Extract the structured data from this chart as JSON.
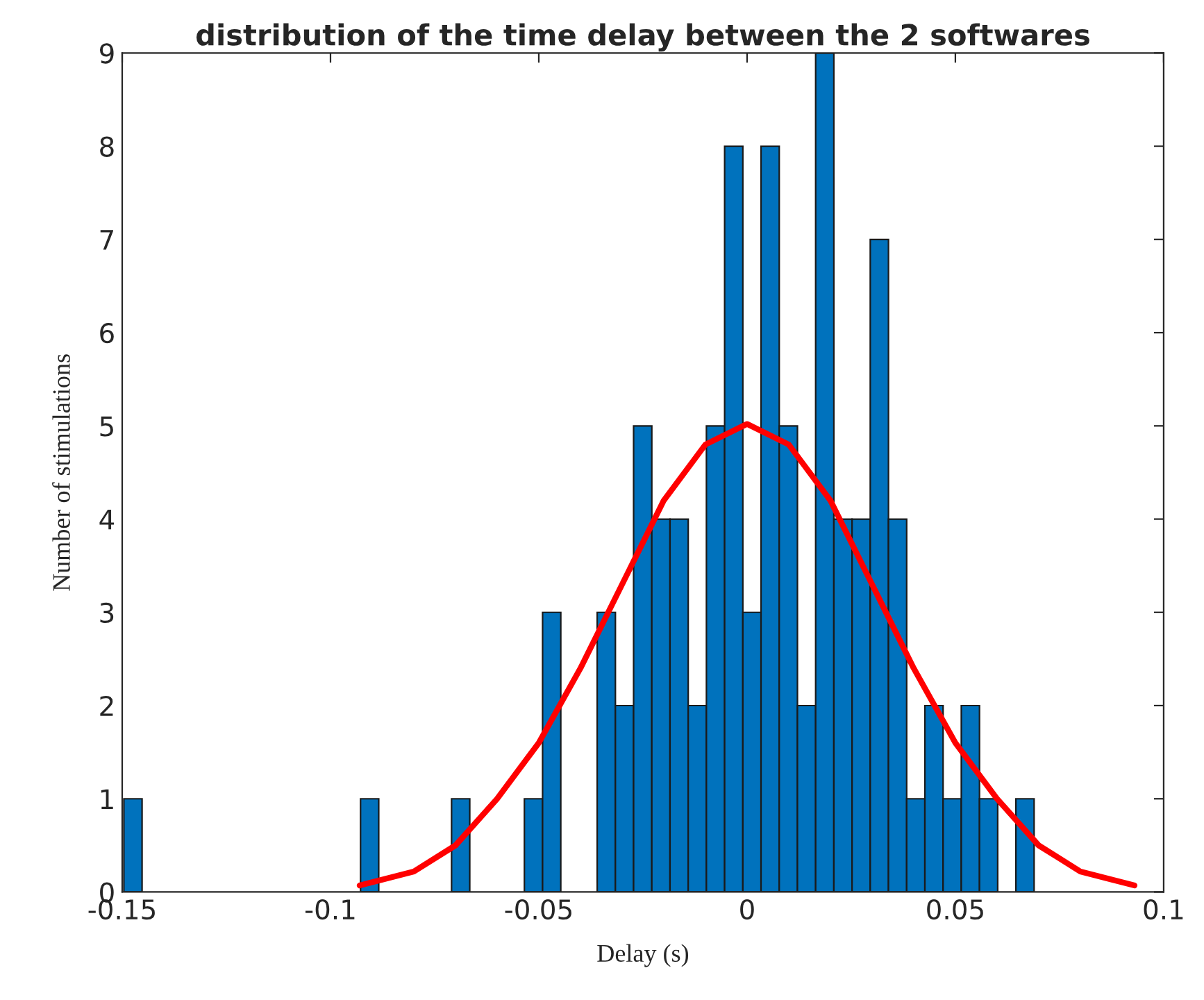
{
  "chart_data": {
    "type": "histogram",
    "title": "distribution of the time delay between the 2 softwares",
    "xlabel": "Delay (s)",
    "ylabel": "Number of stimulations",
    "bins": [
      -0.1496,
      -0.14523,
      -0.14086,
      -0.13649,
      -0.13212,
      -0.12775,
      -0.12338,
      -0.11901,
      -0.11464,
      -0.11027,
      -0.1059,
      -0.10153,
      -0.09716,
      -0.09279,
      -0.08842,
      -0.08405,
      -0.07968,
      -0.07531,
      -0.07094,
      -0.06657,
      -0.0622,
      -0.05783,
      -0.05346,
      -0.04909,
      -0.04472,
      -0.04035,
      -0.03598,
      -0.03161,
      -0.02724,
      -0.02287,
      -0.0185,
      -0.01413,
      -0.00976,
      -0.00539,
      -0.00102,
      0.00335,
      0.00772,
      0.01209,
      0.01646,
      0.02083,
      0.0252,
      0.02957,
      0.03394,
      0.03831,
      0.04268,
      0.04705,
      0.05142,
      0.05579,
      0.06016,
      0.06453,
      0.0689
    ],
    "values": [
      1,
      0,
      0,
      0,
      0,
      0,
      0,
      0,
      0,
      0,
      0,
      0,
      0,
      1,
      0,
      0,
      0,
      0,
      1,
      0,
      0,
      0,
      1,
      3,
      0,
      0,
      3,
      2,
      5,
      4,
      4,
      2,
      5,
      8,
      3,
      8,
      5,
      2,
      9,
      4,
      4,
      7,
      4,
      1,
      2,
      1,
      2,
      1,
      0,
      1
    ],
    "color": "#0072bd",
    "series": [
      {
        "type": "line",
        "color": "#ff0000",
        "x": [
          -0.093,
          -0.08,
          -0.07,
          -0.06,
          -0.05,
          -0.04,
          -0.03,
          -0.02,
          -0.01,
          0,
          0.01,
          0.02,
          0.03,
          0.04,
          0.05,
          0.06,
          0.07,
          0.08,
          0.093
        ],
        "values": [
          0.07,
          0.22,
          0.5,
          1.0,
          1.6,
          2.4,
          3.3,
          4.2,
          4.8,
          5.02,
          4.8,
          4.2,
          3.3,
          2.4,
          1.6,
          1.0,
          0.5,
          0.22,
          0.07
        ]
      }
    ],
    "xlim": [
      -0.15,
      0.1
    ],
    "xticks": [
      -0.15,
      -0.1,
      -0.05,
      0,
      0.05,
      0.1
    ],
    "ylim": [
      0,
      9
    ],
    "yticks": [
      0,
      1,
      2,
      3,
      4,
      5,
      6,
      7,
      8,
      9
    ],
    "grid": false
  }
}
